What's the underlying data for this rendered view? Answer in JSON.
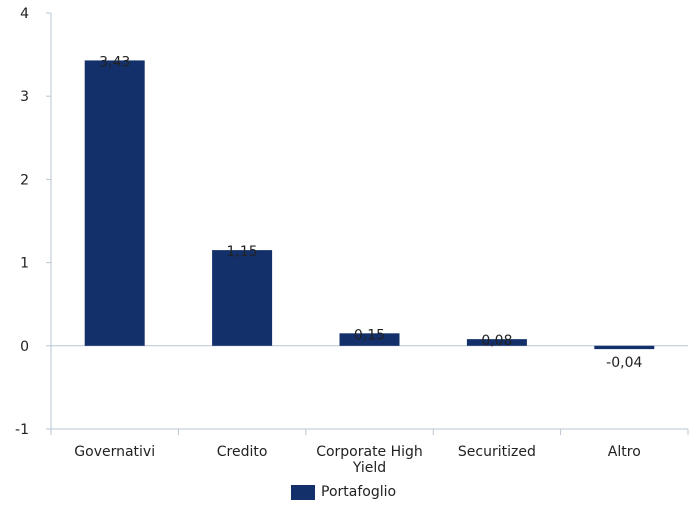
{
  "chart_data": {
    "type": "bar",
    "categories": [
      "Governativi",
      "Credito",
      "Corporate High Yield",
      "Securitized",
      "Altro"
    ],
    "series": [
      {
        "name": "Portafoglio",
        "values": [
          3.43,
          1.15,
          0.15,
          0.08,
          -0.04
        ],
        "color": "#13306b"
      }
    ],
    "data_labels": [
      "3,43",
      "1,15",
      "0,15",
      "0,08",
      "-0,04"
    ],
    "y_ticks": [
      "-1",
      "0",
      "1",
      "2",
      "3",
      "4"
    ],
    "ylim": [
      -1,
      4
    ],
    "grid": false,
    "legend_position": "bottom",
    "axis_color": "#b9c6d6"
  }
}
